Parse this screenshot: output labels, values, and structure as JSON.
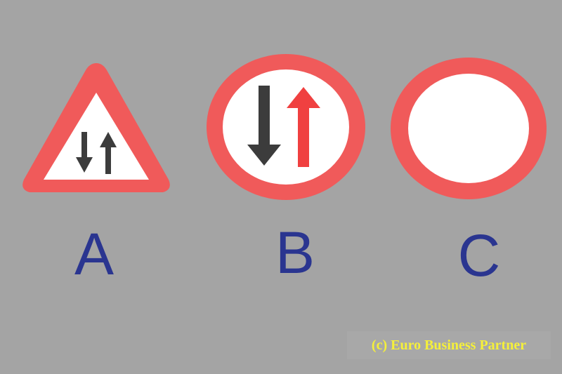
{
  "signs": [
    {
      "letter": "A",
      "shape": "warning-triangle-two-way-traffic-icon"
    },
    {
      "letter": "B",
      "shape": "give-way-to-oncoming-traffic-icon"
    },
    {
      "letter": "C",
      "shape": "no-vehicles-icon"
    }
  ],
  "copyright": "(c) Euro Business Partner",
  "colors": {
    "background": "#a4a4a4",
    "sign_red": "#f05a5a",
    "sign_white": "#ffffff",
    "arrow_dark": "#3c3c3c",
    "arrow_red": "#f04040",
    "letter_blue": "#2a3590",
    "copyright_yellow": "#f5f03a"
  }
}
